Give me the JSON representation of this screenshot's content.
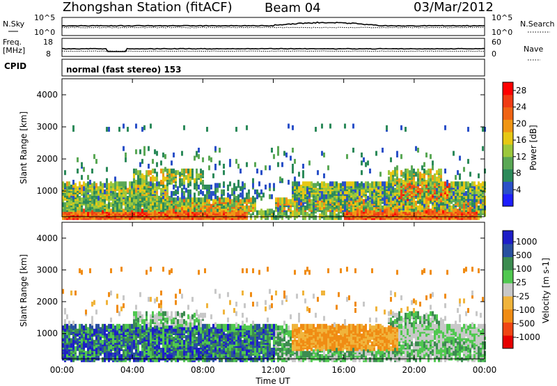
{
  "header": {
    "station": "Zhongshan Station (fitACF)",
    "beam": "Beam 04",
    "date": "03/Mar/2012"
  },
  "panels": {
    "nsky_label": "N.Sky",
    "nsky_ticks": [
      "10^5",
      "10^0"
    ],
    "nsearch_label": "N.Search",
    "nsearch_ticks": [
      "10^5",
      "10^0"
    ],
    "freq_label_1": "Freq.",
    "freq_label_2": "[MHz]",
    "freq_ticks": [
      "18",
      "8"
    ],
    "nave_label": "Nave",
    "nave_ticks": [
      "60",
      "0"
    ],
    "cpid_label": "CPID",
    "cpid_text": "normal (fast stereo) 153"
  },
  "colors": {
    "power": [
      "#1e1eff",
      "#2a50c8",
      "#2c8a5a",
      "#5aa855",
      "#9cc83c",
      "#e6c814",
      "#f09614",
      "#f06414",
      "#f03c14",
      "#ff0000"
    ],
    "velocity": [
      "#e60000",
      "#f04614",
      "#f08c14",
      "#f0b43c",
      "#c8c8c8",
      "#50c850",
      "#3c8c50",
      "#2850a0",
      "#1e1ec8"
    ]
  },
  "chart_data": [
    {
      "type": "heatmap",
      "name": "power",
      "xlabel": "",
      "ylabel": "Slant Range [km]",
      "x_ticks": [],
      "y_ticks": [
        "1000",
        "2000",
        "3000",
        "4000"
      ],
      "ylim": [
        200,
        4500
      ],
      "xlim": [
        0,
        24
      ],
      "colorbar_label": "Power [dB]",
      "colorbar_ticks": [
        "4",
        "8",
        "12",
        "16",
        "20",
        "24",
        "28"
      ],
      "colorbar_range": [
        0,
        30
      ]
    },
    {
      "type": "heatmap",
      "name": "velocity",
      "xlabel": "Time UT",
      "ylabel": "Slant Range [km]",
      "x_ticks": [
        "00:00",
        "04:00",
        "08:00",
        "12:00",
        "16:00",
        "20:00",
        "00:00"
      ],
      "y_ticks": [
        "1000",
        "2000",
        "3000",
        "4000"
      ],
      "ylim": [
        200,
        4500
      ],
      "xlim": [
        0,
        24
      ],
      "colorbar_label": "Velocity [m s-1]",
      "colorbar_ticks": [
        "1000",
        "500",
        "100",
        "25",
        "-25",
        "-100",
        "-500",
        "-1000"
      ]
    }
  ]
}
